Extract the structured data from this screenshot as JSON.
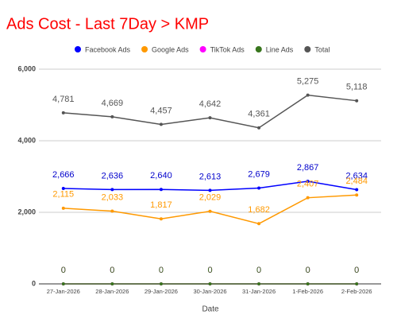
{
  "chart_data": {
    "type": "line",
    "title": "Ads Cost - Last 7Day > KMP",
    "x_label": "Date",
    "categories": [
      "27-Jan-2026",
      "28-Jan-2026",
      "29-Jan-2026",
      "30-Jan-2026",
      "31-Jan-2026",
      "1-Feb-2026",
      "2-Feb-2026"
    ],
    "series": [
      {
        "name": "Facebook Ads",
        "color": "#0000ff",
        "values": [
          2666,
          2636,
          2640,
          2613,
          2679,
          2867,
          2634
        ],
        "value_labels": [
          "2,666",
          "2,636",
          "2,640",
          "2,613",
          "2,679",
          "2,867",
          "2,634"
        ]
      },
      {
        "name": "Google Ads",
        "color": "#ff9900",
        "values": [
          2115,
          2033,
          1817,
          2029,
          1682,
          2407,
          2484
        ],
        "value_labels": [
          "2,115",
          "2,033",
          "1,817",
          "2,029",
          "1,682",
          "2,407",
          "2,484"
        ]
      },
      {
        "name": "TikTok Ads",
        "color": "#ff00ff",
        "values": [
          0,
          0,
          0,
          0,
          0,
          0,
          0
        ]
      },
      {
        "name": "Line Ads",
        "color": "#38761d",
        "values": [
          0,
          0,
          0,
          0,
          0,
          0,
          0
        ]
      },
      {
        "name": "Total",
        "color": "#555555",
        "values": [
          4781,
          4669,
          4457,
          4642,
          4361,
          5275,
          5118
        ],
        "value_labels": [
          "4,781",
          "4,669",
          "4,457",
          "4,642",
          "4,361",
          "5,275",
          "5,118"
        ]
      }
    ],
    "ylim": [
      0,
      6000
    ],
    "yticks": [
      0,
      {
        "value": 2000,
        "label": "2,000"
      },
      {
        "value": 4000,
        "label": "4,000"
      },
      {
        "value": 6000,
        "label": "6,000"
      }
    ],
    "grid": true,
    "legend": "top"
  }
}
